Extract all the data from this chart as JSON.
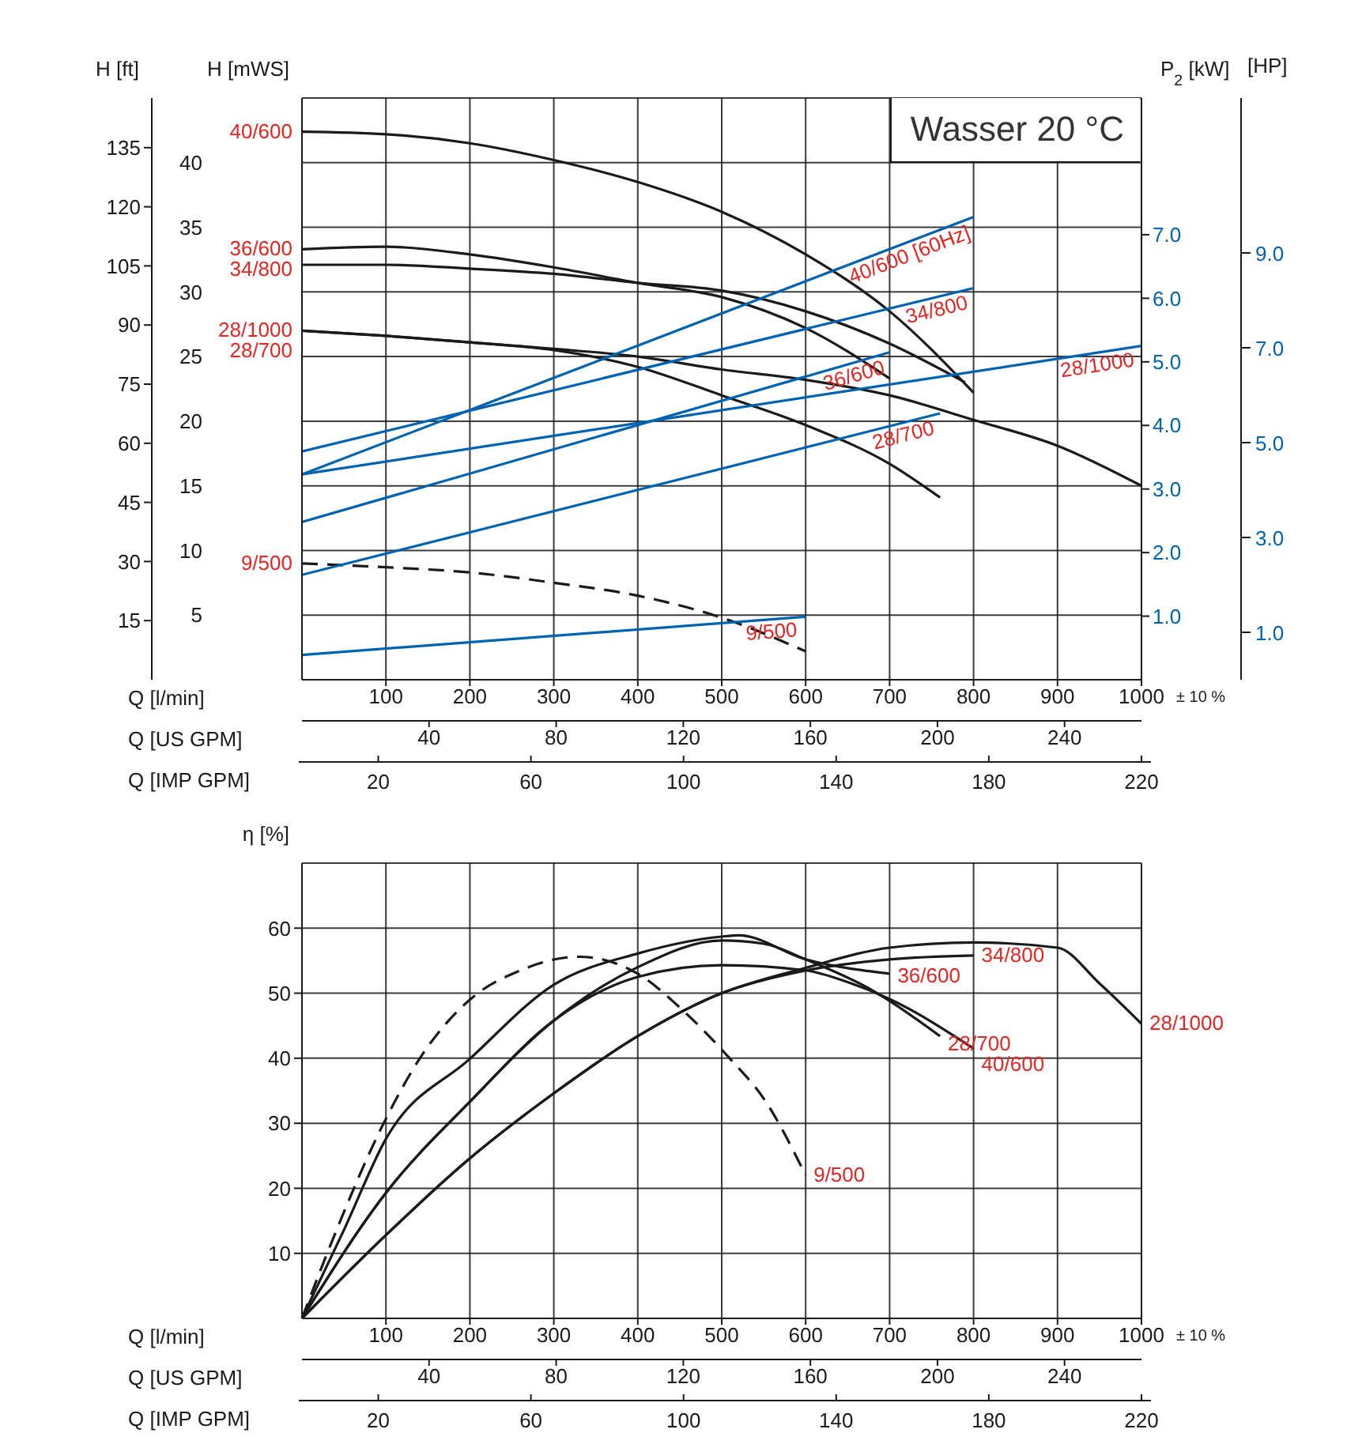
{
  "chart_data": [
    {
      "type": "line",
      "xlabel": "Q [l/min]",
      "x2label": "Q [US GPM]",
      "ylabel": "H [mWS]",
      "y2label": "H [ft]",
      "y3label": "P$_{2}$ [kW]",
      "xlim": [
        0,
        1000
      ],
      "xticks": [
        100,
        200,
        300,
        400,
        500,
        600,
        700,
        800,
        900,
        1000
      ],
      "x2lim": [
        0,
        264.2
      ],
      "x2ticks": [
        40,
        80,
        120,
        160,
        200,
        240
      ],
      "ylim": [
        0,
        45
      ],
      "yticks": [
        5,
        10,
        15,
        20,
        25,
        30,
        35,
        40
      ],
      "y2lim": [
        0,
        147.6
      ],
      "y2ticks": [
        15,
        30,
        45,
        60,
        75,
        90,
        105,
        120,
        135
      ],
      "y3lim": [
        0,
        9.15
      ],
      "y3ticks": [
        {
          "value": 1,
          "label": "1.0"
        },
        {
          "value": 2,
          "label": "2.0"
        },
        {
          "value": 3,
          "label": "3.0"
        },
        {
          "value": 4,
          "label": "4.0"
        },
        {
          "value": 5,
          "label": "5.0"
        },
        {
          "value": 6,
          "label": "6.0"
        },
        {
          "value": 7,
          "label": "7.0"
        }
      ],
      "grid": true,
      "marker": "none",
      "annotations": [
        "± 10 %",
        "Wasser 20 °C",
        "Q [IMP GPM]",
        "20",
        "60",
        "100",
        "140",
        "180",
        "220",
        "[HP]",
        "1.0",
        "3.0",
        "5.0",
        "7.0",
        "9.0"
      ],
      "series": [
        {
          "name": "40/600",
          "color": "#1a1a1a",
          "x": [
            0,
            100,
            200,
            300,
            400,
            500,
            600,
            700,
            800
          ],
          "values": [
            42.4,
            42.2,
            41.5,
            40.2,
            38.5,
            36.2,
            32.9,
            28.5,
            22.2
          ]
        },
        {
          "name": "36/600",
          "color": "#1a1a1a",
          "x": [
            0,
            100,
            200,
            300,
            400,
            500,
            600,
            700
          ],
          "values": [
            33.3,
            33.5,
            32.9,
            31.9,
            30.7,
            29.6,
            27.2,
            23.3
          ]
        },
        {
          "name": "34/800",
          "color": "#1a1a1a",
          "x": [
            0,
            100,
            200,
            300,
            400,
            500,
            600,
            700,
            790
          ],
          "values": [
            32.1,
            32.1,
            31.8,
            31.4,
            30.7,
            30.1,
            28.5,
            26.0,
            23.0
          ]
        },
        {
          "name": "28/1000",
          "color": "#1a1a1a",
          "x": [
            0,
            100,
            200,
            300,
            400,
            500,
            600,
            700,
            800,
            900,
            1000
          ],
          "values": [
            27.0,
            26.6,
            26.1,
            25.6,
            25.0,
            24.0,
            23.2,
            22.0,
            20.1,
            18.1,
            15.0
          ]
        },
        {
          "name": "28/700",
          "color": "#1a1a1a",
          "x": [
            0,
            100,
            200,
            300,
            400,
            500,
            600,
            700,
            760
          ],
          "values": [
            27.0,
            26.6,
            26.1,
            25.5,
            24.2,
            22.0,
            19.7,
            16.7,
            14.1
          ]
        },
        {
          "name": "9/500",
          "color": "#1a1a1a",
          "line_style": "dashed",
          "x": [
            0,
            100,
            200,
            300,
            400,
            500,
            600
          ],
          "values": [
            9.0,
            8.7,
            8.3,
            7.5,
            6.5,
            4.8,
            2.2
          ]
        },
        {
          "name": "40/600 [60Hz]",
          "color": "#0063b1",
          "axis": "y3",
          "x": [
            0,
            800
          ],
          "values": [
            3.23,
            7.28
          ]
        },
        {
          "name": "34/800",
          "color": "#0063b1",
          "axis": "y3",
          "x": [
            0,
            800
          ],
          "values": [
            3.59,
            6.16
          ]
        },
        {
          "name": "28/1000",
          "color": "#0063b1",
          "axis": "y3",
          "x": [
            0,
            1000
          ],
          "values": [
            3.23,
            5.25
          ]
        },
        {
          "name": "36/600",
          "color": "#0063b1",
          "axis": "y3",
          "x": [
            0,
            700
          ],
          "values": [
            2.48,
            5.15
          ]
        },
        {
          "name": "28/700",
          "color": "#0063b1",
          "axis": "y3",
          "x": [
            0,
            760
          ],
          "values": [
            1.65,
            4.19
          ]
        },
        {
          "name": "9/500",
          "color": "#0063b1",
          "axis": "y3",
          "x": [
            0,
            600
          ],
          "values": [
            0.39,
            0.99
          ]
        }
      ]
    },
    {
      "type": "line",
      "xlabel": "Q [l/min]",
      "x2label": "Q [US GPM]",
      "ylabel": "η [%]",
      "xlim": [
        0,
        1000
      ],
      "xticks": [
        100,
        200,
        300,
        400,
        500,
        600,
        700,
        800,
        900,
        1000
      ],
      "x2lim": [
        0,
        264.2
      ],
      "x2ticks": [
        40,
        80,
        120,
        160,
        200,
        240
      ],
      "ylim": [
        0,
        70
      ],
      "yticks": [
        10,
        20,
        30,
        40,
        50,
        60
      ],
      "grid": true,
      "marker": "none",
      "annotations": [
        "± 10 %",
        "Q [IMP GPM]",
        "20",
        "60",
        "100",
        "140",
        "180",
        "220"
      ],
      "series": [
        {
          "name": "9/500",
          "color": "#1a1a1a",
          "line_style": "dashed",
          "x": [
            0,
            30,
            100,
            140,
            200,
            260,
            330,
            400,
            450,
            510,
            550,
            600
          ],
          "values": [
            0,
            10,
            30.7,
            39.9,
            49,
            53.5,
            55.6,
            53,
            47.8,
            39.9,
            33.8,
            22
          ]
        },
        {
          "name": "36/600",
          "color": "#1a1a1a",
          "x": [
            0,
            50,
            100,
            200,
            300,
            400,
            500,
            520,
            600,
            700
          ],
          "values": [
            0,
            13.6,
            27.6,
            39.9,
            51.3,
            56.1,
            58.7,
            58.9,
            55.2,
            53
          ]
        },
        {
          "name": "28/700",
          "color": "#1a1a1a",
          "x": [
            0,
            100,
            200,
            300,
            400,
            500,
            550,
            600,
            680,
            760
          ],
          "values": [
            0,
            19.3,
            33.3,
            45.8,
            54,
            58.1,
            57.6,
            55.2,
            50.4,
            43.4
          ]
        },
        {
          "name": "40/600",
          "color": "#1a1a1a",
          "x": [
            0,
            100,
            200,
            300,
            400,
            500,
            600,
            650,
            700,
            800
          ],
          "values": [
            0,
            19.3,
            33.3,
            45.8,
            52.5,
            54.3,
            53.5,
            51.7,
            49.1,
            41.5
          ]
        },
        {
          "name": "34/800",
          "color": "#1a1a1a",
          "x": [
            0,
            100,
            200,
            300,
            400,
            500,
            600,
            700,
            800
          ],
          "values": [
            0,
            12.8,
            24.6,
            34.6,
            43.4,
            50,
            53.5,
            55.2,
            55.8
          ]
        },
        {
          "name": "28/1000",
          "color": "#1a1a1a",
          "x": [
            0,
            100,
            200,
            300,
            400,
            500,
            600,
            700,
            800,
            900,
            950,
            1000
          ],
          "values": [
            0,
            12.8,
            24.6,
            34.6,
            43.4,
            50,
            53.9,
            57,
            57.8,
            57,
            51.5,
            45.3
          ]
        }
      ]
    }
  ]
}
